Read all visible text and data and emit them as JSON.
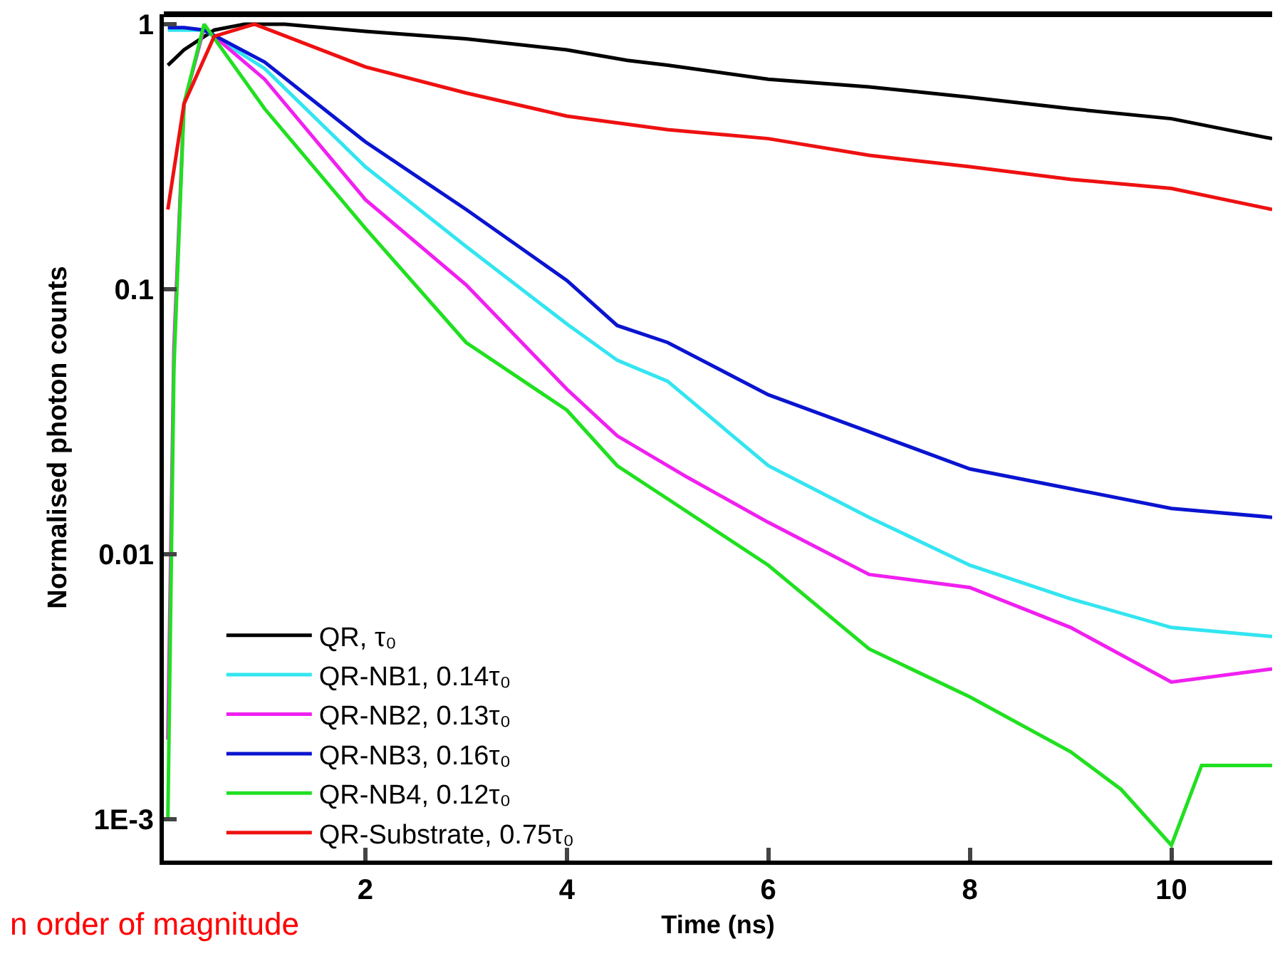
{
  "chart_data": {
    "type": "line",
    "xlabel": "Time (ns)",
    "ylabel": "Normalised photon counts",
    "xlim": [
      0,
      11
    ],
    "xticks": [
      2,
      4,
      6,
      8,
      10
    ],
    "ylim": [
      0.0007,
      1.09
    ],
    "yticks": [
      {
        "value": 0.001,
        "label": "1E-3"
      },
      0.01,
      0.1,
      1
    ],
    "log": "y",
    "legend": "bottom left",
    "marker": "none",
    "line_style": "solid",
    "annotations": [
      "n order of magnitude"
    ],
    "series": [
      {
        "name": "QR, τ₀",
        "color": "#000000",
        "x": [
          0.04,
          0.2,
          0.5,
          0.8,
          1.2,
          2,
          3,
          4,
          4.6,
          5,
          6,
          7,
          8,
          9,
          10,
          11
        ],
        "values": [
          0.7,
          0.8,
          0.95,
          1.0,
          1.0,
          0.94,
          0.88,
          0.8,
          0.73,
          0.7,
          0.62,
          0.58,
          0.53,
          0.48,
          0.44,
          0.37
        ]
      },
      {
        "name": "QR-NB1, 0.14τ₀",
        "color": "#33e5f0",
        "x": [
          0.04,
          0.2,
          0.4,
          1,
          2,
          3,
          4,
          4.5,
          5,
          6,
          7,
          8,
          9,
          10,
          11
        ],
        "values": [
          0.95,
          0.95,
          0.95,
          0.68,
          0.29,
          0.145,
          0.074,
          0.054,
          0.045,
          0.0216,
          0.0138,
          0.0091,
          0.0068,
          0.0053,
          0.0049
        ]
      },
      {
        "name": "QR-NB2, 0.13τ₀",
        "color": "#f020f0",
        "x": [
          0.04,
          0.1,
          0.2,
          0.4,
          1,
          2,
          3,
          4,
          4.5,
          5.2,
          6,
          7,
          8,
          9,
          10,
          11
        ],
        "values": [
          0.002,
          0.06,
          0.5,
          0.97,
          0.62,
          0.218,
          0.104,
          0.042,
          0.028,
          0.0195,
          0.0132,
          0.0084,
          0.0075,
          0.0053,
          0.0033,
          0.0037
        ]
      },
      {
        "name": "QR-NB3, 0.16τ₀",
        "color": "#0a14d0",
        "x": [
          0.04,
          0.2,
          0.4,
          1,
          2,
          3,
          4,
          4.5,
          5,
          6,
          7,
          8,
          9,
          10,
          11
        ],
        "values": [
          0.97,
          0.97,
          0.95,
          0.72,
          0.36,
          0.2,
          0.108,
          0.073,
          0.063,
          0.04,
          0.029,
          0.021,
          0.0177,
          0.0149,
          0.0138
        ]
      },
      {
        "name": "QR-NB4, 0.12τ₀",
        "color": "#20e020",
        "x": [
          0.04,
          0.1,
          0.2,
          0.4,
          1,
          2,
          3,
          4,
          4.5,
          5,
          6,
          7,
          8,
          9,
          9.5,
          10,
          10.3,
          11
        ],
        "values": [
          0.001,
          0.05,
          0.5,
          1.0,
          0.48,
          0.17,
          0.063,
          0.035,
          0.0216,
          0.0162,
          0.0091,
          0.0044,
          0.0029,
          0.0018,
          0.0013,
          0.0008,
          0.0016,
          0.0016
        ]
      },
      {
        "name": "QR-Substrate, 0.75τ₀",
        "color": "#ee1111",
        "x": [
          0.04,
          0.2,
          0.5,
          0.9,
          2,
          3,
          4,
          5,
          6,
          7,
          8,
          9,
          10,
          11
        ],
        "values": [
          0.2,
          0.5,
          0.9,
          1.0,
          0.69,
          0.55,
          0.45,
          0.4,
          0.37,
          0.32,
          0.29,
          0.26,
          0.24,
          0.2
        ]
      }
    ]
  }
}
